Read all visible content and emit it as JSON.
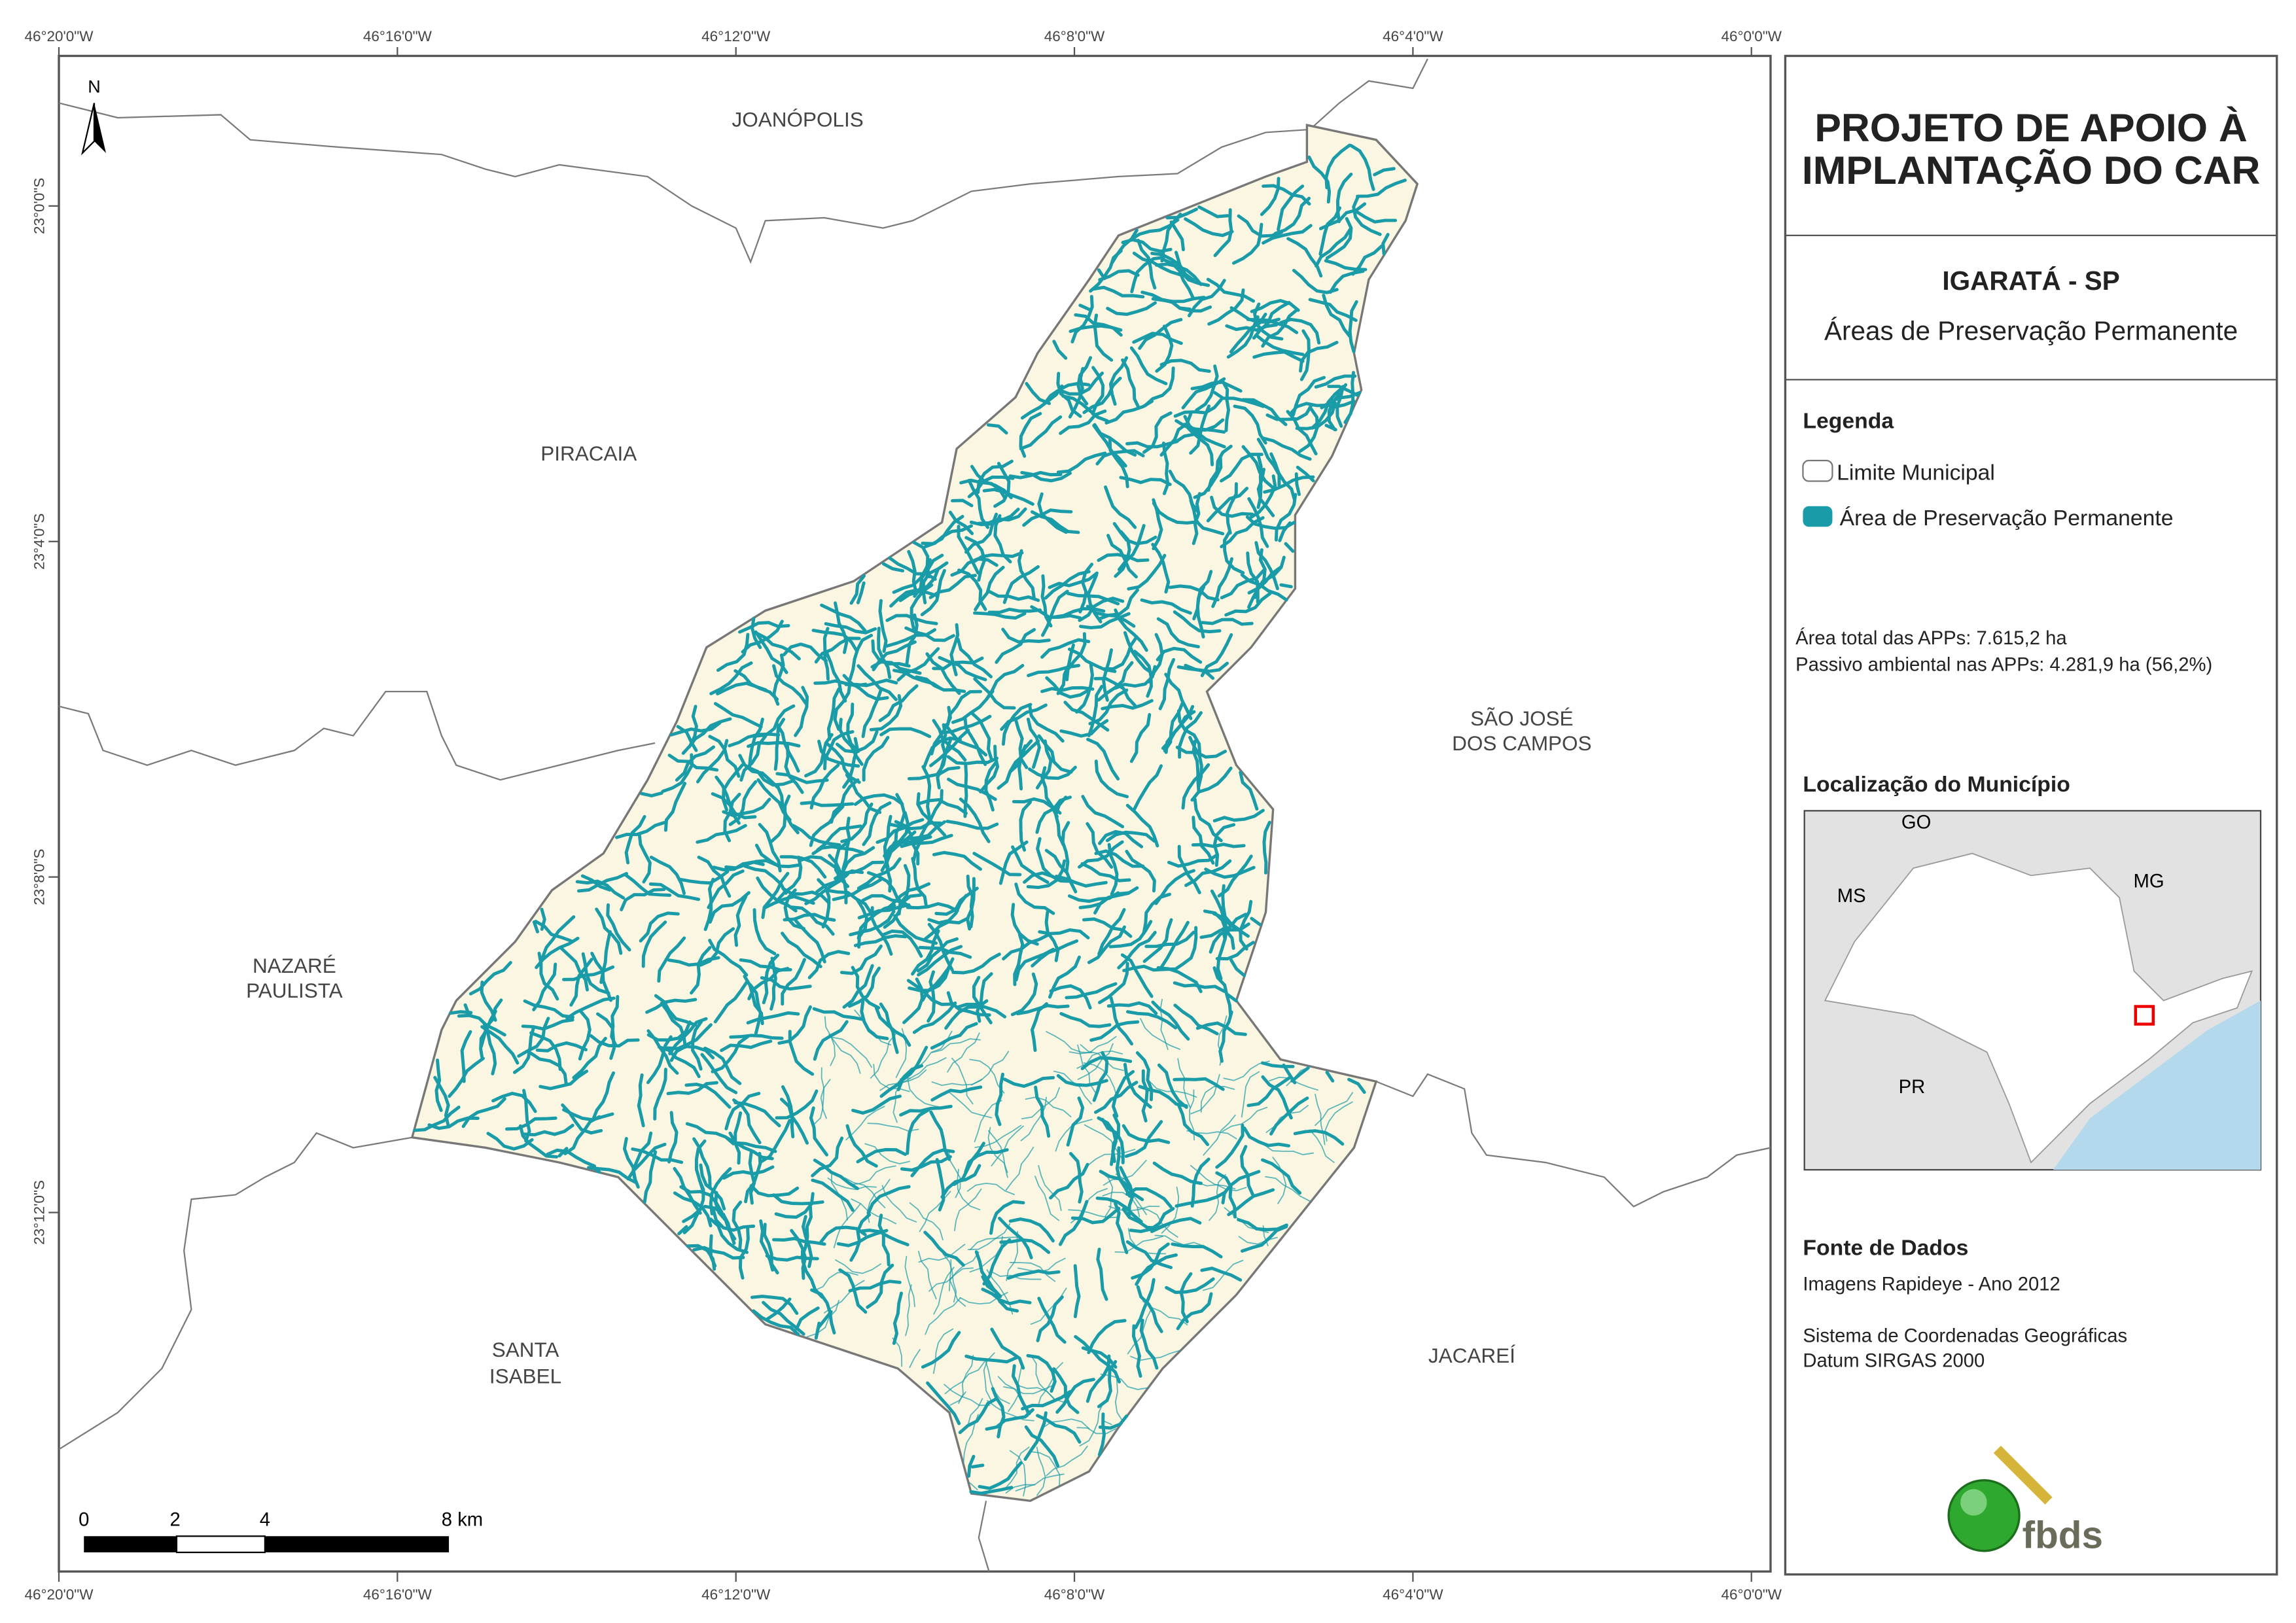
{
  "header": {
    "title_lines": [
      "PROJETO DE APOIO À",
      "IMPLANTAÇÃO DO CAR"
    ]
  },
  "subtitle": {
    "municipality": "IGARATÁ - SP",
    "theme": "Áreas de Preservação Permanente"
  },
  "legend": {
    "title": "Legenda",
    "items": [
      "Limite Municipal",
      "Área de Preservação Permanente"
    ]
  },
  "stats": [
    "Área total das APPs: 7.615,2 ha",
    "Passivo ambiental nas APPs: 4.281,9 ha (56,2%)"
  ],
  "location": {
    "title": "Localização do Município",
    "labels": [
      "GO",
      "MS",
      "MG",
      "PR"
    ]
  },
  "sources": {
    "title": "Fonte de Dados",
    "lines": [
      "Imagens Rapideye - Ano 2012",
      "Sistema de Coordenadas Geográficas",
      "Datum SIRGAS 2000"
    ]
  },
  "logo": "fbds",
  "map": {
    "north": "N",
    "x_ticks": [
      "46°20'0\"W",
      "46°16'0\"W",
      "46°12'0\"W",
      "46°8'0\"W",
      "46°4'0\"W",
      "46°0'0\"W"
    ],
    "y_ticks": [
      "23°0'0\"S",
      "23°4'0\"S",
      "23°8'0\"S",
      "23°12'0\"S"
    ],
    "places": [
      {
        "lines": [
          "JOANÓPOLIS"
        ]
      },
      {
        "lines": [
          "PIRACAIA"
        ]
      },
      {
        "lines": [
          "SÃO JOSÉ",
          "DOS CAMPOS"
        ]
      },
      {
        "lines": [
          "NAZARÉ",
          "PAULISTA"
        ]
      },
      {
        "lines": [
          "SANTA",
          "ISABEL"
        ]
      },
      {
        "lines": [
          "JACAREÍ"
        ]
      }
    ],
    "scale": [
      "0",
      "2",
      "4",
      "8 km"
    ]
  }
}
